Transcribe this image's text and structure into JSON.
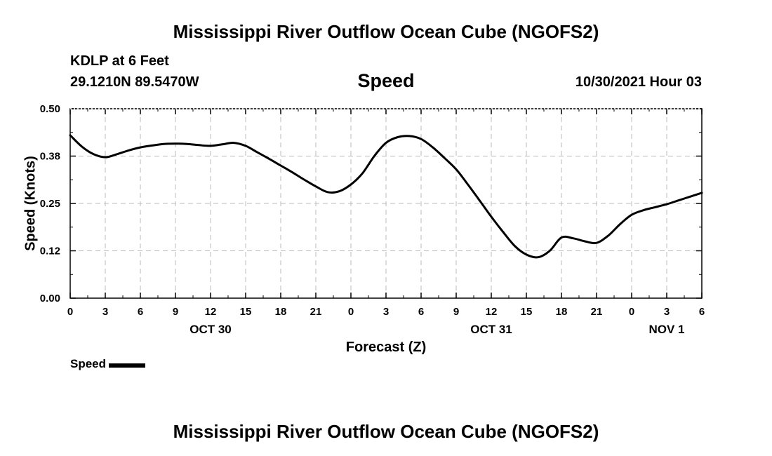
{
  "header": {
    "title": "Mississippi River Outflow Ocean Cube (NGOFS2)",
    "station": "KDLP at 6 Feet",
    "coordinates": "29.1210N  89.5470W",
    "valid_time": "10/30/2021 Hour 03"
  },
  "footer": {
    "title": "Mississippi River Outflow Ocean Cube (NGOFS2)"
  },
  "legend": {
    "label": "Speed",
    "color": "#000000"
  },
  "chart_data": {
    "type": "line",
    "title": "Speed",
    "xlabel": "Forecast (Z)",
    "ylabel": "Speed (Knots)",
    "xlim": [
      0,
      54
    ],
    "ylim": [
      0,
      0.5
    ],
    "yticks": [
      "0.00",
      "0.12",
      "0.25",
      "0.38",
      "0.50"
    ],
    "xticks": [
      {
        "hour": 0,
        "label": "0"
      },
      {
        "hour": 3,
        "label": "3"
      },
      {
        "hour": 6,
        "label": "6"
      },
      {
        "hour": 9,
        "label": "9"
      },
      {
        "hour": 12,
        "label": "12"
      },
      {
        "hour": 15,
        "label": "15"
      },
      {
        "hour": 18,
        "label": "18"
      },
      {
        "hour": 21,
        "label": "21"
      },
      {
        "hour": 24,
        "label": "0"
      },
      {
        "hour": 27,
        "label": "3"
      },
      {
        "hour": 30,
        "label": "6"
      },
      {
        "hour": 33,
        "label": "9"
      },
      {
        "hour": 36,
        "label": "12"
      },
      {
        "hour": 39,
        "label": "15"
      },
      {
        "hour": 42,
        "label": "18"
      },
      {
        "hour": 45,
        "label": "21"
      },
      {
        "hour": 48,
        "label": "0"
      },
      {
        "hour": 51,
        "label": "3"
      },
      {
        "hour": 54,
        "label": "6"
      }
    ],
    "day_labels": [
      {
        "hour": 12,
        "label": "OCT 30"
      },
      {
        "hour": 36,
        "label": "OCT 31"
      },
      {
        "hour": 51,
        "label": "NOV 1"
      }
    ],
    "grid": true,
    "series": [
      {
        "name": "Speed",
        "color": "#000000",
        "x": [
          0,
          1,
          2,
          3,
          4,
          5,
          6,
          7,
          8,
          9,
          10,
          11,
          12,
          13,
          14,
          15,
          16,
          17,
          18,
          19,
          20,
          21,
          22,
          23,
          24,
          25,
          26,
          27,
          28,
          29,
          30,
          31,
          32,
          33,
          34,
          35,
          36,
          37,
          38,
          39,
          40,
          41,
          42,
          43,
          44,
          45,
          46,
          47,
          48,
          49,
          50,
          51,
          52,
          53,
          54
        ],
        "y": [
          0.43,
          0.4,
          0.38,
          0.372,
          0.38,
          0.39,
          0.398,
          0.403,
          0.407,
          0.408,
          0.407,
          0.404,
          0.402,
          0.406,
          0.41,
          0.402,
          0.385,
          0.368,
          0.35,
          0.332,
          0.313,
          0.295,
          0.28,
          0.282,
          0.3,
          0.33,
          0.375,
          0.41,
          0.425,
          0.428,
          0.42,
          0.398,
          0.37,
          0.34,
          0.3,
          0.258,
          0.215,
          0.175,
          0.138,
          0.115,
          0.108,
          0.125,
          0.16,
          0.158,
          0.15,
          0.146,
          0.165,
          0.195,
          0.22,
          0.232,
          0.24,
          0.248,
          0.258,
          0.268,
          0.278
        ]
      }
    ]
  }
}
